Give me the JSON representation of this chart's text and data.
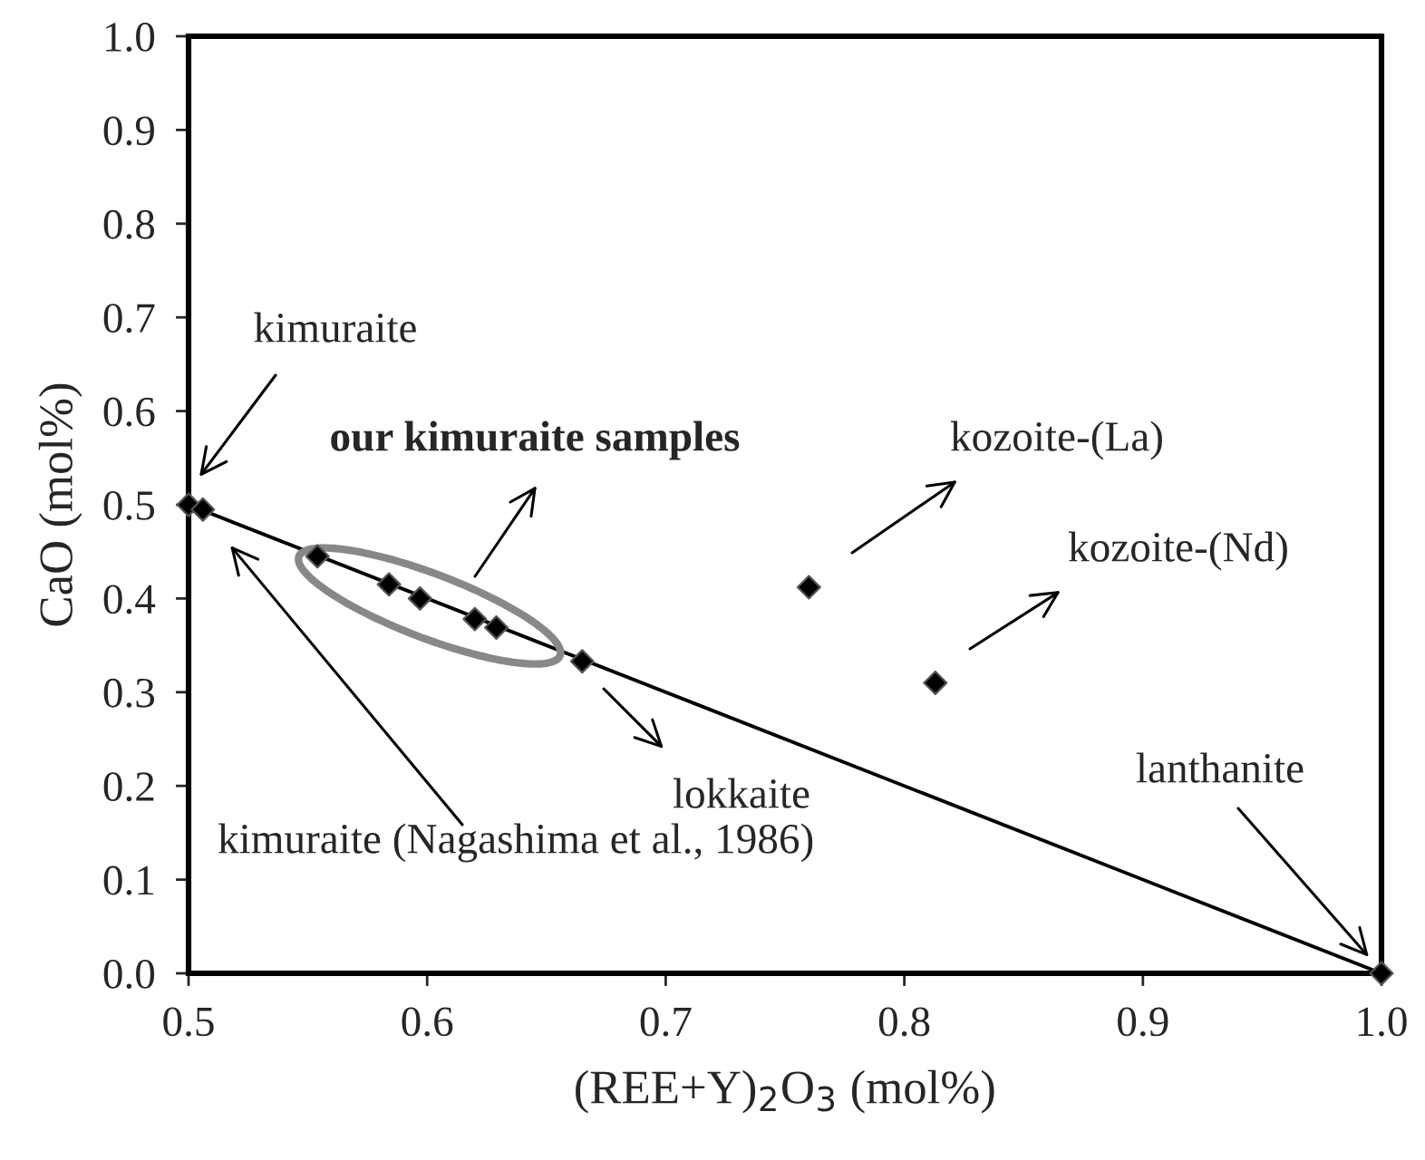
{
  "chart_data": {
    "type": "scatter",
    "xlabel": "(REE+Y)$_{2}$O$_{3}$ (mol%)",
    "ylabel": "CaO (mol%)",
    "series": [
      {
        "type": "line",
        "color": "#000000",
        "marker": "none",
        "x": [
          0.5,
          1.0
        ],
        "values": [
          0.5,
          0.0
        ]
      },
      {
        "color": "#000000",
        "marker": "diamond",
        "x": [
          0.5,
          0.506,
          0.554,
          0.584,
          0.597,
          0.62,
          0.629,
          0.665,
          0.76,
          0.813,
          1.0
        ],
        "values": [
          0.5,
          0.495,
          0.445,
          0.415,
          0.4,
          0.378,
          0.369,
          0.333,
          0.412,
          0.31,
          0.0
        ]
      }
    ],
    "xlim": [
      0.5,
      1.0
    ],
    "ylim": [
      0.0,
      1.0
    ],
    "xticks": [
      0.5,
      0.6,
      0.7,
      0.8,
      0.9,
      {
        "value": 1,
        "label": "1.0"
      }
    ],
    "yticks": [
      {
        "value": 0,
        "label": "0.0"
      },
      0.1,
      0.2,
      0.3,
      0.4,
      0.5,
      0.6,
      0.7,
      0.8,
      0.9,
      {
        "value": 1,
        "label": "1.0"
      }
    ],
    "grid": false,
    "legend": false,
    "annotations": [
      "kimuraite",
      "our kimuraite samples",
      "kozoite-(La)",
      "kozoite-(Nd)",
      "lokkaite",
      "kimuraite (Nagashima et al., 1986)",
      "lanthanite"
    ]
  }
}
